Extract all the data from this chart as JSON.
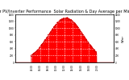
{
  "title": "Solar PV/Inverter Performance  Solar Radiation & Day Average per Minute",
  "title_fontsize": 3.5,
  "bg_color": "#ffffff",
  "plot_bg_color": "#ffffff",
  "grid_color": "#aaaaaa",
  "area_color": "#ff0000",
  "area_edge_color": "#dd0000",
  "ylim": [
    0,
    1400
  ],
  "xlim": [
    0,
    1440
  ],
  "yticks": [
    0,
    200,
    400,
    600,
    800,
    1000,
    1200,
    1400
  ],
  "xtick_labels": [
    "04:00",
    "06:00",
    "08:00",
    "10:00",
    "12:00",
    "14:00",
    "16:00",
    "18:00",
    "20:00"
  ],
  "xtick_positions": [
    240,
    360,
    480,
    600,
    720,
    840,
    960,
    1080,
    1200
  ],
  "ylabel_right": "W/m²",
  "peak": 1280,
  "peak_time": 740,
  "spread": 260
}
